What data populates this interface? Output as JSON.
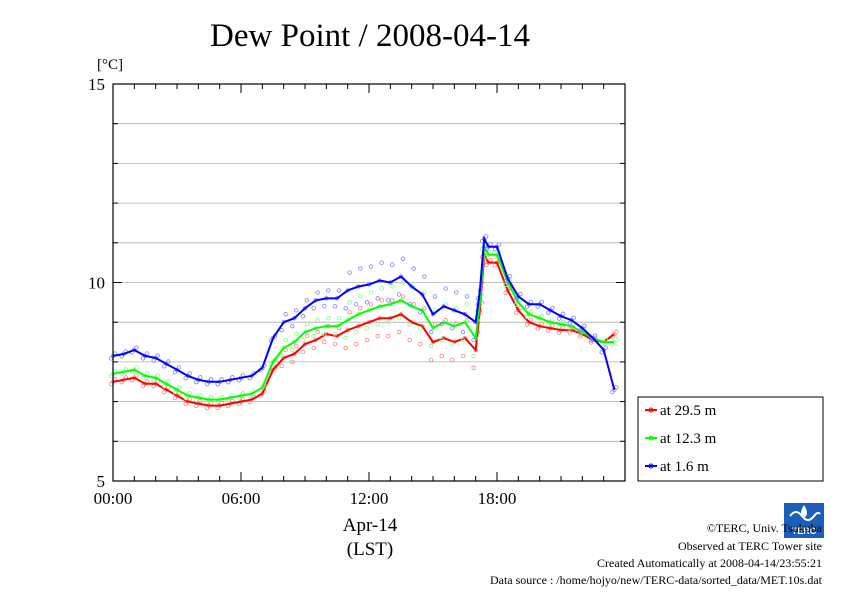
{
  "chart_data": {
    "type": "line",
    "title": "Dew Point / 2008-04-14",
    "ylabel": "[°C]",
    "xlabel": "Apr-14",
    "xlabel2": "(LST)",
    "ylim": [
      5,
      15
    ],
    "xlim": [
      0,
      24
    ],
    "yticks": [
      5,
      10,
      15
    ],
    "xticks": [
      {
        "value": 0,
        "label": "00:00"
      },
      {
        "value": 6,
        "label": "06:00"
      },
      {
        "value": 12,
        "label": "12:00"
      },
      {
        "value": 18,
        "label": "18:00"
      }
    ],
    "grid": true,
    "legend_position": "bottom-right outside",
    "series": [
      {
        "name": "at 29.5 m",
        "color": "#ff0000",
        "x": [
          0,
          0.5,
          1,
          1.5,
          2,
          2.5,
          3,
          3.5,
          4,
          4.5,
          5,
          5.5,
          6,
          6.5,
          7,
          7.5,
          8,
          8.5,
          9,
          9.5,
          10,
          10.5,
          11,
          11.5,
          12,
          12.5,
          13,
          13.5,
          14,
          14.5,
          15,
          15.5,
          16,
          16.5,
          17,
          17.2,
          17.4,
          17.6,
          18,
          18.5,
          19,
          19.5,
          20,
          20.5,
          21,
          21.5,
          22,
          22.5,
          23,
          23.5
        ],
        "y": [
          7.5,
          7.55,
          7.6,
          7.45,
          7.45,
          7.3,
          7.15,
          7.0,
          6.95,
          6.9,
          6.9,
          6.95,
          7.0,
          7.05,
          7.2,
          7.8,
          8.1,
          8.2,
          8.45,
          8.55,
          8.7,
          8.65,
          8.8,
          8.9,
          9.0,
          9.1,
          9.1,
          9.2,
          9.0,
          8.9,
          8.5,
          8.6,
          8.5,
          8.6,
          8.3,
          9.3,
          10.7,
          10.5,
          10.5,
          9.8,
          9.3,
          9.0,
          8.9,
          8.85,
          8.8,
          8.8,
          8.7,
          8.55,
          8.5,
          8.7
        ]
      },
      {
        "name": "at 12.3 m",
        "color": "#00ff00",
        "x": [
          0,
          0.5,
          1,
          1.5,
          2,
          2.5,
          3,
          3.5,
          4,
          4.5,
          5,
          5.5,
          6,
          6.5,
          7,
          7.5,
          8,
          8.5,
          9,
          9.5,
          10,
          10.5,
          11,
          11.5,
          12,
          12.5,
          13,
          13.5,
          14,
          14.5,
          15,
          15.5,
          16,
          16.5,
          17,
          17.2,
          17.4,
          17.6,
          18,
          18.5,
          19,
          19.5,
          20,
          20.5,
          21,
          21.5,
          22,
          22.5,
          23,
          23.5
        ],
        "y": [
          7.7,
          7.75,
          7.8,
          7.65,
          7.6,
          7.45,
          7.3,
          7.15,
          7.1,
          7.05,
          7.05,
          7.1,
          7.15,
          7.2,
          7.35,
          8.0,
          8.35,
          8.5,
          8.75,
          8.85,
          8.9,
          8.9,
          9.05,
          9.2,
          9.3,
          9.4,
          9.45,
          9.55,
          9.4,
          9.3,
          8.85,
          9.0,
          8.9,
          9.0,
          8.6,
          9.5,
          10.9,
          10.7,
          10.7,
          10.0,
          9.5,
          9.2,
          9.1,
          9.0,
          8.95,
          8.9,
          8.75,
          8.6,
          8.5,
          8.5
        ]
      },
      {
        "name": "at 1.6 m",
        "color": "#0000ff",
        "x": [
          0,
          0.5,
          1,
          1.5,
          2,
          2.5,
          3,
          3.5,
          4,
          4.5,
          5,
          5.5,
          6,
          6.5,
          7,
          7.5,
          8,
          8.5,
          9,
          9.5,
          10,
          10.5,
          11,
          11.5,
          12,
          12.5,
          13,
          13.5,
          14,
          14.5,
          15,
          15.5,
          16,
          16.5,
          17,
          17.2,
          17.4,
          17.6,
          18,
          18.5,
          19,
          19.5,
          20,
          20.5,
          21,
          21.5,
          22,
          22.5,
          23,
          23.5
        ],
        "y": [
          8.15,
          8.2,
          8.3,
          8.15,
          8.1,
          7.95,
          7.8,
          7.65,
          7.55,
          7.5,
          7.5,
          7.55,
          7.6,
          7.65,
          7.85,
          8.6,
          9.0,
          9.1,
          9.35,
          9.55,
          9.6,
          9.6,
          9.8,
          9.9,
          9.95,
          10.05,
          10.0,
          10.15,
          9.9,
          9.7,
          9.2,
          9.4,
          9.3,
          9.2,
          9.0,
          9.8,
          11.1,
          10.9,
          10.9,
          10.1,
          9.65,
          9.45,
          9.45,
          9.3,
          9.15,
          9.05,
          8.85,
          8.6,
          8.3,
          7.3
        ]
      }
    ]
  },
  "credits": {
    "line1": "©TERC, Univ. Tsukuba",
    "line2": "Observed at TERC Tower site",
    "line3": "Created Automatically at 2008-04-14/23:55:21",
    "line4": "Data source : /home/hojyo/new/TERC-data/sorted_data/MET.10s.dat"
  },
  "logo": {
    "text": "TERC",
    "color": "#1c5fb8"
  }
}
